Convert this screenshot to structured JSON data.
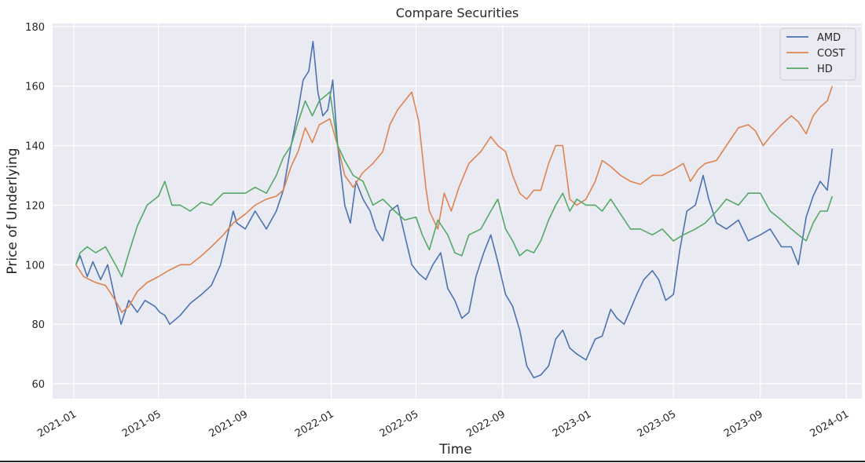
{
  "chart_data": {
    "type": "line",
    "title": "Compare Securities",
    "xlabel": "Time",
    "ylabel": "Price of Underlying",
    "xlim": [
      "2020-12-02",
      "2024-01-23"
    ],
    "ylim": [
      55,
      181
    ],
    "x_ticks": [
      "2021-01",
      "2021-05",
      "2021-09",
      "2022-01",
      "2022-05",
      "2022-09",
      "2023-01",
      "2023-05",
      "2023-09",
      "2024-01"
    ],
    "y_ticks": [
      60,
      80,
      100,
      120,
      140,
      160,
      180
    ],
    "grid": true,
    "legend_position": "top-right",
    "series": [
      {
        "name": "AMD",
        "color": "#4c72b0",
        "points": [
          [
            "2021-01-04",
            100
          ],
          [
            "2021-01-10",
            103
          ],
          [
            "2021-01-20",
            96
          ],
          [
            "2021-01-28",
            101
          ],
          [
            "2021-02-08",
            95
          ],
          [
            "2021-02-18",
            100
          ],
          [
            "2021-03-01",
            88
          ],
          [
            "2021-03-09",
            80
          ],
          [
            "2021-03-20",
            88
          ],
          [
            "2021-04-01",
            84
          ],
          [
            "2021-04-12",
            88
          ],
          [
            "2021-04-26",
            86
          ],
          [
            "2021-05-03",
            84
          ],
          [
            "2021-05-10",
            83
          ],
          [
            "2021-05-17",
            80
          ],
          [
            "2021-06-01",
            83
          ],
          [
            "2021-06-15",
            87
          ],
          [
            "2021-07-01",
            90
          ],
          [
            "2021-07-15",
            93
          ],
          [
            "2021-07-28",
            100
          ],
          [
            "2021-08-05",
            108
          ],
          [
            "2021-08-15",
            118
          ],
          [
            "2021-08-20",
            114
          ],
          [
            "2021-09-01",
            112
          ],
          [
            "2021-09-15",
            118
          ],
          [
            "2021-10-01",
            112
          ],
          [
            "2021-10-15",
            118
          ],
          [
            "2021-10-25",
            125
          ],
          [
            "2021-11-05",
            140
          ],
          [
            "2021-11-15",
            152
          ],
          [
            "2021-11-22",
            162
          ],
          [
            "2021-11-30",
            165
          ],
          [
            "2021-12-06",
            175
          ],
          [
            "2021-12-13",
            158
          ],
          [
            "2021-12-20",
            150
          ],
          [
            "2021-12-27",
            152
          ],
          [
            "2022-01-03",
            162
          ],
          [
            "2022-01-10",
            140
          ],
          [
            "2022-01-20",
            120
          ],
          [
            "2022-01-28",
            114
          ],
          [
            "2022-02-05",
            128
          ],
          [
            "2022-02-15",
            122
          ],
          [
            "2022-02-25",
            118
          ],
          [
            "2022-03-05",
            112
          ],
          [
            "2022-03-15",
            108
          ],
          [
            "2022-03-25",
            118
          ],
          [
            "2022-04-05",
            120
          ],
          [
            "2022-04-15",
            110
          ],
          [
            "2022-04-25",
            100
          ],
          [
            "2022-05-05",
            97
          ],
          [
            "2022-05-15",
            95
          ],
          [
            "2022-05-25",
            100
          ],
          [
            "2022-06-05",
            104
          ],
          [
            "2022-06-15",
            92
          ],
          [
            "2022-06-25",
            88
          ],
          [
            "2022-07-05",
            82
          ],
          [
            "2022-07-15",
            84
          ],
          [
            "2022-07-25",
            96
          ],
          [
            "2022-08-05",
            104
          ],
          [
            "2022-08-15",
            110
          ],
          [
            "2022-08-25",
            101
          ],
          [
            "2022-09-05",
            90
          ],
          [
            "2022-09-15",
            86
          ],
          [
            "2022-09-25",
            78
          ],
          [
            "2022-10-05",
            66
          ],
          [
            "2022-10-15",
            62
          ],
          [
            "2022-10-25",
            63
          ],
          [
            "2022-11-05",
            66
          ],
          [
            "2022-11-15",
            75
          ],
          [
            "2022-11-25",
            78
          ],
          [
            "2022-12-05",
            72
          ],
          [
            "2022-12-15",
            70
          ],
          [
            "2022-12-28",
            68
          ],
          [
            "2023-01-10",
            75
          ],
          [
            "2023-01-20",
            76
          ],
          [
            "2023-02-01",
            85
          ],
          [
            "2023-02-10",
            82
          ],
          [
            "2023-02-20",
            80
          ],
          [
            "2023-03-01",
            85
          ],
          [
            "2023-03-10",
            90
          ],
          [
            "2023-03-20",
            95
          ],
          [
            "2023-04-01",
            98
          ],
          [
            "2023-04-10",
            95
          ],
          [
            "2023-04-20",
            88
          ],
          [
            "2023-05-01",
            90
          ],
          [
            "2023-05-10",
            105
          ],
          [
            "2023-05-20",
            118
          ],
          [
            "2023-06-01",
            120
          ],
          [
            "2023-06-12",
            130
          ],
          [
            "2023-06-20",
            122
          ],
          [
            "2023-07-01",
            114
          ],
          [
            "2023-07-15",
            112
          ],
          [
            "2023-08-01",
            115
          ],
          [
            "2023-08-15",
            108
          ],
          [
            "2023-09-01",
            110
          ],
          [
            "2023-09-15",
            112
          ],
          [
            "2023-10-01",
            106
          ],
          [
            "2023-10-15",
            106
          ],
          [
            "2023-10-25",
            100
          ],
          [
            "2023-11-05",
            116
          ],
          [
            "2023-11-15",
            123
          ],
          [
            "2023-11-25",
            128
          ],
          [
            "2023-12-05",
            125
          ],
          [
            "2023-12-12",
            139
          ]
        ]
      },
      {
        "name": "COST",
        "color": "#dd8452",
        "points": [
          [
            "2021-01-04",
            100
          ],
          [
            "2021-01-15",
            96
          ],
          [
            "2021-02-01",
            94
          ],
          [
            "2021-02-15",
            93
          ],
          [
            "2021-03-01",
            88
          ],
          [
            "2021-03-10",
            84
          ],
          [
            "2021-03-20",
            86
          ],
          [
            "2021-04-01",
            91
          ],
          [
            "2021-04-15",
            94
          ],
          [
            "2021-05-01",
            96
          ],
          [
            "2021-05-15",
            98
          ],
          [
            "2021-06-01",
            100
          ],
          [
            "2021-06-15",
            100
          ],
          [
            "2021-07-01",
            103
          ],
          [
            "2021-07-15",
            106
          ],
          [
            "2021-08-01",
            110
          ],
          [
            "2021-08-15",
            114
          ],
          [
            "2021-09-01",
            117
          ],
          [
            "2021-09-15",
            120
          ],
          [
            "2021-10-01",
            122
          ],
          [
            "2021-10-15",
            123
          ],
          [
            "2021-10-25",
            125
          ],
          [
            "2021-11-05",
            133
          ],
          [
            "2021-11-15",
            138
          ],
          [
            "2021-11-25",
            146
          ],
          [
            "2021-12-05",
            141
          ],
          [
            "2021-12-15",
            147
          ],
          [
            "2021-12-30",
            149
          ],
          [
            "2022-01-10",
            140
          ],
          [
            "2022-01-20",
            130
          ],
          [
            "2022-02-01",
            126
          ],
          [
            "2022-02-15",
            131
          ],
          [
            "2022-03-01",
            134
          ],
          [
            "2022-03-15",
            138
          ],
          [
            "2022-03-25",
            147
          ],
          [
            "2022-04-05",
            152
          ],
          [
            "2022-04-15",
            155
          ],
          [
            "2022-04-25",
            158
          ],
          [
            "2022-05-05",
            148
          ],
          [
            "2022-05-15",
            126
          ],
          [
            "2022-05-20",
            118
          ],
          [
            "2022-06-01",
            112
          ],
          [
            "2022-06-10",
            124
          ],
          [
            "2022-06-20",
            118
          ],
          [
            "2022-07-01",
            126
          ],
          [
            "2022-07-15",
            134
          ],
          [
            "2022-08-01",
            138
          ],
          [
            "2022-08-15",
            143
          ],
          [
            "2022-08-25",
            140
          ],
          [
            "2022-09-05",
            138
          ],
          [
            "2022-09-15",
            130
          ],
          [
            "2022-09-25",
            124
          ],
          [
            "2022-10-05",
            122
          ],
          [
            "2022-10-15",
            125
          ],
          [
            "2022-10-25",
            125
          ],
          [
            "2022-11-05",
            134
          ],
          [
            "2022-11-15",
            140
          ],
          [
            "2022-11-25",
            140
          ],
          [
            "2022-12-05",
            122
          ],
          [
            "2022-12-15",
            120
          ],
          [
            "2022-12-28",
            122
          ],
          [
            "2023-01-10",
            128
          ],
          [
            "2023-01-20",
            135
          ],
          [
            "2023-02-01",
            133
          ],
          [
            "2023-02-15",
            130
          ],
          [
            "2023-03-01",
            128
          ],
          [
            "2023-03-15",
            127
          ],
          [
            "2023-04-01",
            130
          ],
          [
            "2023-04-15",
            130
          ],
          [
            "2023-05-01",
            132
          ],
          [
            "2023-05-15",
            134
          ],
          [
            "2023-05-25",
            128
          ],
          [
            "2023-06-05",
            132
          ],
          [
            "2023-06-15",
            134
          ],
          [
            "2023-07-01",
            135
          ],
          [
            "2023-07-15",
            140
          ],
          [
            "2023-08-01",
            146
          ],
          [
            "2023-08-15",
            147
          ],
          [
            "2023-08-25",
            145
          ],
          [
            "2023-09-05",
            140
          ],
          [
            "2023-09-15",
            143
          ],
          [
            "2023-10-01",
            147
          ],
          [
            "2023-10-15",
            150
          ],
          [
            "2023-10-25",
            148
          ],
          [
            "2023-11-05",
            144
          ],
          [
            "2023-11-15",
            150
          ],
          [
            "2023-11-25",
            153
          ],
          [
            "2023-12-05",
            155
          ],
          [
            "2023-12-12",
            160
          ]
        ]
      },
      {
        "name": "HD",
        "color": "#55a868",
        "points": [
          [
            "2021-01-04",
            100
          ],
          [
            "2021-01-10",
            104
          ],
          [
            "2021-01-20",
            106
          ],
          [
            "2021-02-01",
            104
          ],
          [
            "2021-02-15",
            106
          ],
          [
            "2021-03-01",
            100
          ],
          [
            "2021-03-10",
            96
          ],
          [
            "2021-03-20",
            104
          ],
          [
            "2021-04-01",
            113
          ],
          [
            "2021-04-15",
            120
          ],
          [
            "2021-05-01",
            123
          ],
          [
            "2021-05-10",
            128
          ],
          [
            "2021-05-20",
            120
          ],
          [
            "2021-06-01",
            120
          ],
          [
            "2021-06-15",
            118
          ],
          [
            "2021-07-01",
            121
          ],
          [
            "2021-07-15",
            120
          ],
          [
            "2021-08-01",
            124
          ],
          [
            "2021-08-15",
            124
          ],
          [
            "2021-09-01",
            124
          ],
          [
            "2021-09-15",
            126
          ],
          [
            "2021-10-01",
            124
          ],
          [
            "2021-10-15",
            130
          ],
          [
            "2021-10-25",
            136
          ],
          [
            "2021-11-05",
            140
          ],
          [
            "2021-11-15",
            148
          ],
          [
            "2021-11-25",
            155
          ],
          [
            "2021-12-05",
            150
          ],
          [
            "2021-12-15",
            155
          ],
          [
            "2021-12-30",
            158
          ],
          [
            "2022-01-10",
            140
          ],
          [
            "2022-01-20",
            135
          ],
          [
            "2022-02-01",
            130
          ],
          [
            "2022-02-15",
            128
          ],
          [
            "2022-03-01",
            120
          ],
          [
            "2022-03-15",
            122
          ],
          [
            "2022-04-01",
            118
          ],
          [
            "2022-04-15",
            115
          ],
          [
            "2022-05-01",
            116
          ],
          [
            "2022-05-10",
            110
          ],
          [
            "2022-05-20",
            105
          ],
          [
            "2022-06-01",
            115
          ],
          [
            "2022-06-15",
            110
          ],
          [
            "2022-06-25",
            104
          ],
          [
            "2022-07-05",
            103
          ],
          [
            "2022-07-15",
            110
          ],
          [
            "2022-08-01",
            112
          ],
          [
            "2022-08-15",
            118
          ],
          [
            "2022-08-25",
            122
          ],
          [
            "2022-09-05",
            112
          ],
          [
            "2022-09-15",
            108
          ],
          [
            "2022-09-25",
            103
          ],
          [
            "2022-10-05",
            105
          ],
          [
            "2022-10-15",
            104
          ],
          [
            "2022-10-25",
            108
          ],
          [
            "2022-11-05",
            115
          ],
          [
            "2022-11-15",
            120
          ],
          [
            "2022-11-25",
            124
          ],
          [
            "2022-12-05",
            118
          ],
          [
            "2022-12-15",
            122
          ],
          [
            "2022-12-28",
            120
          ],
          [
            "2023-01-10",
            120
          ],
          [
            "2023-01-20",
            118
          ],
          [
            "2023-02-01",
            122
          ],
          [
            "2023-02-15",
            117
          ],
          [
            "2023-03-01",
            112
          ],
          [
            "2023-03-15",
            112
          ],
          [
            "2023-04-01",
            110
          ],
          [
            "2023-04-15",
            112
          ],
          [
            "2023-05-01",
            108
          ],
          [
            "2023-05-15",
            110
          ],
          [
            "2023-06-01",
            112
          ],
          [
            "2023-06-15",
            114
          ],
          [
            "2023-07-01",
            118
          ],
          [
            "2023-07-15",
            122
          ],
          [
            "2023-08-01",
            120
          ],
          [
            "2023-08-15",
            124
          ],
          [
            "2023-09-01",
            124
          ],
          [
            "2023-09-15",
            118
          ],
          [
            "2023-10-01",
            115
          ],
          [
            "2023-10-15",
            112
          ],
          [
            "2023-10-25",
            110
          ],
          [
            "2023-11-05",
            108
          ],
          [
            "2023-11-15",
            114
          ],
          [
            "2023-11-25",
            118
          ],
          [
            "2023-12-05",
            118
          ],
          [
            "2023-12-12",
            123
          ]
        ]
      }
    ]
  }
}
